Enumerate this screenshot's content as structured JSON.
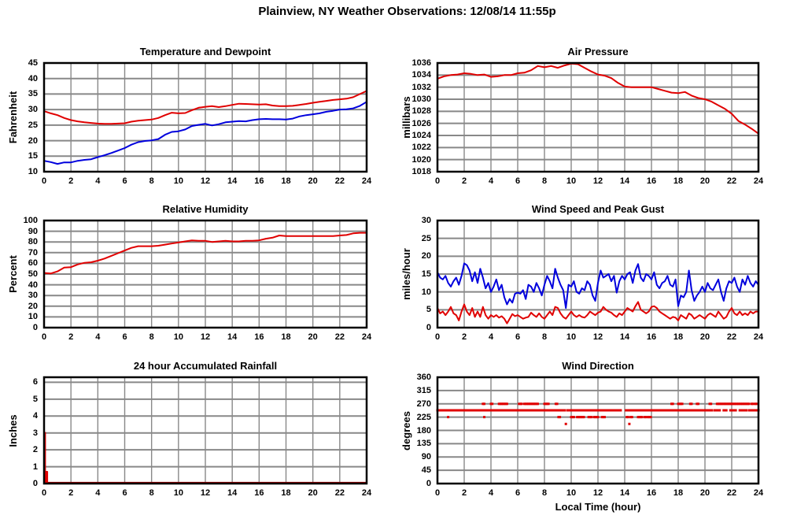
{
  "page_title": "Plainview, NY Weather Observations: 12/08/14 11:55p",
  "colors": {
    "red": "#e00000",
    "blue": "#0000dd",
    "dark_red": "#990000",
    "grid": "#888888",
    "axis": "#000000",
    "background": "#ffffff"
  },
  "chart_data": [
    {
      "type": "line",
      "title": "Temperature and Dewpoint",
      "ylabel": "Fahrenheit",
      "xlim": [
        0,
        24
      ],
      "ylim": [
        10,
        45
      ],
      "xticks": [
        0,
        2,
        4,
        6,
        8,
        10,
        12,
        14,
        16,
        18,
        20,
        22,
        24
      ],
      "yticks": [
        10,
        15,
        20,
        25,
        30,
        35,
        40,
        45
      ],
      "series": [
        {
          "name": "temperature",
          "color": "#e00000",
          "x_start": 0,
          "x_step": 0.5,
          "y": [
            29.5,
            28.8,
            28.2,
            27.3,
            26.6,
            26.2,
            25.9,
            25.7,
            25.5,
            25.4,
            25.4,
            25.5,
            25.6,
            26.1,
            26.4,
            26.6,
            26.8,
            27.3,
            28.2,
            29.0,
            28.8,
            28.9,
            29.8,
            30.6,
            30.9,
            31.1,
            30.8,
            31.1,
            31.5,
            31.9,
            31.8,
            31.7,
            31.6,
            31.7,
            31.3,
            31.1,
            31.1,
            31.2,
            31.5,
            31.8,
            32.2,
            32.5,
            32.8,
            33.1,
            33.3,
            33.5,
            34.0,
            35.0,
            36.0
          ]
        },
        {
          "name": "dewpoint",
          "color": "#0000dd",
          "x_start": 0,
          "x_step": 0.5,
          "y": [
            13.5,
            13.1,
            12.5,
            13.0,
            13.0,
            13.5,
            13.8,
            14.0,
            14.7,
            15.3,
            16.0,
            16.8,
            17.6,
            18.7,
            19.5,
            19.9,
            20.1,
            20.5,
            21.9,
            22.8,
            23.0,
            23.6,
            24.7,
            25.1,
            25.4,
            24.9,
            25.3,
            25.9,
            26.1,
            26.3,
            26.2,
            26.6,
            26.9,
            27.0,
            26.9,
            26.9,
            26.8,
            27.1,
            27.8,
            28.2,
            28.5,
            28.8,
            29.3,
            29.6,
            30.0,
            30.1,
            30.4,
            31.2,
            32.5
          ]
        }
      ]
    },
    {
      "type": "line",
      "title": "Air Pressure",
      "ylabel": "millibars",
      "xlim": [
        0,
        24
      ],
      "ylim": [
        1018,
        1036
      ],
      "xticks": [
        0,
        2,
        4,
        6,
        8,
        10,
        12,
        14,
        16,
        18,
        20,
        22,
        24
      ],
      "yticks": [
        1018,
        1020,
        1022,
        1024,
        1026,
        1028,
        1030,
        1032,
        1034,
        1036
      ],
      "series": [
        {
          "name": "pressure",
          "color": "#e00000",
          "x_start": 0,
          "x_step": 0.5,
          "y": [
            1033.4,
            1033.8,
            1034.0,
            1034.1,
            1034.3,
            1034.2,
            1034.0,
            1034.1,
            1033.7,
            1033.8,
            1034.0,
            1034.0,
            1034.3,
            1034.4,
            1034.8,
            1035.5,
            1035.3,
            1035.5,
            1035.2,
            1035.6,
            1035.9,
            1035.8,
            1035.2,
            1034.6,
            1034.1,
            1033.9,
            1033.5,
            1032.7,
            1032.1,
            1032.0,
            1032.0,
            1032.0,
            1032.0,
            1031.7,
            1031.4,
            1031.1,
            1031.0,
            1031.2,
            1030.6,
            1030.2,
            1030.0,
            1029.6,
            1029.0,
            1028.4,
            1027.6,
            1026.4,
            1025.8,
            1025.1,
            1024.3
          ]
        }
      ]
    },
    {
      "type": "line",
      "title": "Relative Humidity",
      "ylabel": "Percent",
      "xlim": [
        0,
        24
      ],
      "ylim": [
        0,
        100
      ],
      "xticks": [
        0,
        2,
        4,
        6,
        8,
        10,
        12,
        14,
        16,
        18,
        20,
        22,
        24
      ],
      "yticks": [
        0,
        10,
        20,
        30,
        40,
        50,
        60,
        70,
        80,
        90,
        100
      ],
      "series": [
        {
          "name": "humidity",
          "color": "#e00000",
          "x_start": 0,
          "x_step": 0.5,
          "y": [
            51,
            50.5,
            52.5,
            56,
            56.5,
            59,
            60.5,
            61,
            62.5,
            64.5,
            67,
            69.5,
            72,
            74.5,
            76,
            76,
            76,
            76.5,
            77.5,
            78.5,
            79.5,
            80.5,
            81.5,
            81,
            81,
            80,
            80.5,
            81,
            80.5,
            80.5,
            81,
            81,
            81.5,
            83,
            84,
            86,
            85.5,
            85.5,
            85.5,
            85.5,
            85.5,
            85.5,
            85.5,
            85.5,
            86,
            86.5,
            88,
            88.5,
            88.5
          ]
        }
      ]
    },
    {
      "type": "line",
      "title": "Wind Speed and Peak Gust",
      "ylabel": "miles/hour",
      "xlim": [
        0,
        24
      ],
      "ylim": [
        0,
        30
      ],
      "xticks": [
        0,
        2,
        4,
        6,
        8,
        10,
        12,
        14,
        16,
        18,
        20,
        22,
        24
      ],
      "yticks": [
        0,
        5,
        10,
        15,
        20,
        25,
        30
      ],
      "series": [
        {
          "name": "peak-gust",
          "color": "#0000dd",
          "x_start": 0,
          "x_step": 0.2,
          "y": [
            15.5,
            14,
            13.5,
            14.5,
            12.5,
            11.5,
            13,
            14,
            12,
            14.5,
            18,
            17.5,
            16,
            13,
            15.5,
            12.5,
            16.5,
            14,
            11,
            12.5,
            10,
            11.5,
            13.5,
            10.5,
            12,
            8.5,
            6.5,
            8,
            7,
            9.5,
            9.8,
            9.5,
            10.5,
            8,
            12,
            11.5,
            10,
            12.5,
            11,
            9,
            12,
            14.5,
            13,
            11,
            16.5,
            14,
            12,
            10.5,
            5.5,
            12,
            11.5,
            13,
            10,
            9.5,
            11,
            10.5,
            13,
            12,
            9,
            7.5,
            12.5,
            16,
            14,
            14.5,
            15,
            13,
            14.5,
            9.8,
            13,
            14.5,
            13.5,
            15,
            15.5,
            12.5,
            16,
            17.8,
            14,
            13,
            15,
            14.5,
            13.5,
            15.5,
            12,
            11,
            12.5,
            13,
            14.5,
            12,
            11.5,
            13.5,
            6,
            9,
            8.5,
            10,
            16,
            10.5,
            7.5,
            9,
            10,
            11.5,
            10,
            12.5,
            11,
            10.5,
            12,
            13.5,
            10,
            7.5,
            11,
            13,
            12.5,
            14,
            11.5,
            10,
            13.5,
            12,
            14.5,
            12.5,
            11.5,
            13,
            12
          ]
        },
        {
          "name": "wind-speed",
          "color": "#e00000",
          "x_start": 0,
          "x_step": 0.2,
          "y": [
            5.5,
            4,
            4.5,
            3.5,
            4.5,
            5.8,
            4,
            3.5,
            2,
            4.5,
            6.5,
            4.5,
            3.5,
            5.5,
            3,
            4.5,
            3,
            5.8,
            3.5,
            2.5,
            3.5,
            3,
            3.5,
            2.8,
            3.2,
            2.5,
            1.2,
            2.5,
            3.8,
            3.2,
            3.5,
            3,
            2.5,
            2.8,
            3,
            4.2,
            3.5,
            3,
            4,
            3,
            2.5,
            3.5,
            4.5,
            3.5,
            5.8,
            5.5,
            4,
            3,
            2.5,
            3.5,
            4.5,
            3.5,
            3,
            3.5,
            3,
            2.8,
            3.5,
            4.5,
            4,
            3.5,
            4.2,
            4.5,
            5.8,
            5,
            4.5,
            4.2,
            3.5,
            3,
            4,
            3.5,
            4.5,
            5.5,
            5,
            4.5,
            6,
            7.2,
            5,
            4.5,
            4,
            4.5,
            5.8,
            6,
            5.5,
            4.5,
            4,
            3.5,
            3,
            2.5,
            3,
            2.8,
            2,
            3.5,
            3,
            2.5,
            4,
            3.5,
            2.5,
            3,
            3.5,
            3,
            2.5,
            3.5,
            4,
            3.5,
            3,
            4.5,
            3.5,
            2.5,
            3,
            4.5,
            5.5,
            4,
            3.5,
            4.5,
            3.5,
            4,
            3.5,
            4.5,
            4,
            4.5,
            4.5
          ]
        }
      ]
    },
    {
      "type": "line",
      "title": "24 hour Accumulated Rainfall",
      "ylabel": "Inches",
      "xlim": [
        0,
        24
      ],
      "ylim": [
        0,
        6.3
      ],
      "xticks": [
        0,
        2,
        4,
        6,
        8,
        10,
        12,
        14,
        16,
        18,
        20,
        22,
        24
      ],
      "yticks": [
        0,
        1,
        2,
        3,
        4,
        5,
        6
      ],
      "series": [
        {
          "name": "rainfall-baseline",
          "color": "#990000",
          "x": [
            0,
            24
          ],
          "y": [
            0.05,
            0.05
          ]
        },
        {
          "name": "rainfall-reset-spike",
          "color": "#e00000",
          "x": [
            0.08,
            0.08,
            0.16,
            0.16,
            0.24,
            0.24
          ],
          "y": [
            3.05,
            0.05,
            0.05,
            0.7,
            0.7,
            0.05
          ]
        }
      ]
    },
    {
      "type": "scatter",
      "title": "Wind Direction",
      "ylabel": "degrees",
      "xlabel": "Local Time (hour)",
      "xlim": [
        0,
        24
      ],
      "ylim": [
        0,
        360
      ],
      "xticks": [
        0,
        2,
        4,
        6,
        8,
        10,
        12,
        14,
        16,
        18,
        20,
        22,
        24
      ],
      "yticks": [
        0,
        45,
        90,
        135,
        180,
        225,
        270,
        315,
        360
      ],
      "scatter": {
        "color": "#e00000",
        "dot_size": 3,
        "dot_step": 0.1,
        "bands": [
          {
            "value": 248,
            "ranges": [
              [
                0,
                9.5
              ],
              [
                9.7,
                13.7
              ],
              [
                14.1,
                17.5
              ],
              [
                17.6,
                20.5
              ],
              [
                20.7,
                21.1
              ],
              [
                21.4,
                21.6
              ],
              [
                21.9,
                22.3
              ],
              [
                22.6,
                23.1
              ],
              [
                23.3,
                24
              ]
            ]
          },
          {
            "value": 270,
            "ranges": [
              [
                3.4,
                3.5
              ],
              [
                4.0,
                4.15
              ],
              [
                4.6,
                5.25
              ],
              [
                6.1,
                6.3
              ],
              [
                6.5,
                7.5
              ],
              [
                8.0,
                8.35
              ],
              [
                8.85,
                8.95
              ],
              [
                17.5,
                17.6
              ],
              [
                18.0,
                18.3
              ],
              [
                18.9,
                19.05
              ],
              [
                19.4,
                19.5
              ],
              [
                20.35,
                20.5
              ],
              [
                20.9,
                23.35
              ],
              [
                23.5,
                23.6
              ],
              [
                23.75,
                23.85
              ]
            ]
          },
          {
            "value": 225,
            "ranges": [
              [
                0.8,
                0.85
              ],
              [
                3.5,
                3.55
              ],
              [
                9.05,
                9.15
              ],
              [
                10.0,
                10.25
              ],
              [
                10.45,
                10.95
              ],
              [
                11.3,
                11.55
              ],
              [
                11.7,
                12.0
              ],
              [
                12.3,
                12.5
              ],
              [
                14.15,
                14.3
              ],
              [
                14.45,
                14.6
              ],
              [
                15.0,
                15.3
              ],
              [
                15.5,
                15.6
              ],
              [
                15.75,
                15.95
              ]
            ]
          }
        ],
        "points": [
          {
            "x": 9.6,
            "y": 202
          },
          {
            "x": 14.35,
            "y": 202
          }
        ]
      }
    }
  ]
}
